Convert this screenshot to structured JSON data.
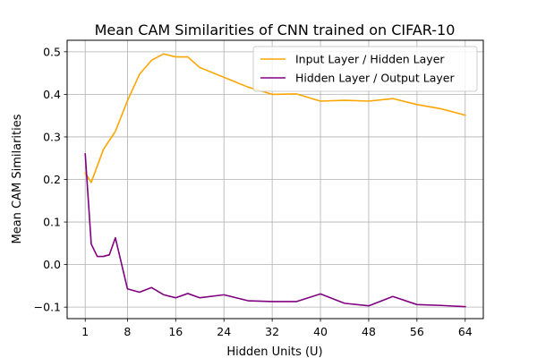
{
  "chart_data": {
    "type": "line",
    "title": "Mean CAM Similarities of CNN trained on CIFAR-10",
    "xlabel": "Hidden Units (U)",
    "ylabel": "Mean CAM Similarities",
    "xlim": [
      -2,
      67
    ],
    "ylim": [
      -0.127,
      0.527
    ],
    "xticks": [
      1,
      8,
      16,
      24,
      32,
      40,
      48,
      56,
      64
    ],
    "yticks": [
      -0.1,
      0.0,
      0.1,
      0.2,
      0.3,
      0.4,
      0.5
    ],
    "ytick_labels": [
      "−0.1",
      "0.0",
      "0.1",
      "0.2",
      "0.3",
      "0.4",
      "0.5"
    ],
    "grid": true,
    "legend_position": "top-right",
    "series": [
      {
        "name": "Input Layer / Hidden Layer",
        "color": "#FFA500",
        "x": [
          1,
          2,
          4,
          6,
          8,
          10,
          12,
          14,
          16,
          18,
          20,
          24,
          28,
          32,
          36,
          40,
          44,
          48,
          52,
          56,
          60,
          64
        ],
        "y": [
          0.215,
          0.193,
          0.27,
          0.313,
          0.385,
          0.447,
          0.48,
          0.495,
          0.488,
          0.488,
          0.463,
          0.44,
          0.417,
          0.4,
          0.401,
          0.384,
          0.386,
          0.384,
          0.39,
          0.376,
          0.366,
          0.351
        ]
      },
      {
        "name": "Hidden Layer / Output Layer",
        "color": "#800080",
        "x": [
          1,
          2,
          3,
          4,
          5,
          6,
          8,
          10,
          12,
          14,
          16,
          18,
          20,
          24,
          28,
          32,
          36,
          40,
          44,
          48,
          52,
          56,
          60,
          64
        ],
        "y": [
          0.26,
          0.048,
          0.019,
          0.019,
          0.023,
          0.063,
          -0.057,
          -0.065,
          -0.054,
          -0.071,
          -0.078,
          -0.068,
          -0.078,
          -0.071,
          -0.085,
          -0.087,
          -0.087,
          -0.069,
          -0.091,
          -0.097,
          -0.075,
          -0.094,
          -0.096,
          -0.099
        ]
      }
    ]
  }
}
